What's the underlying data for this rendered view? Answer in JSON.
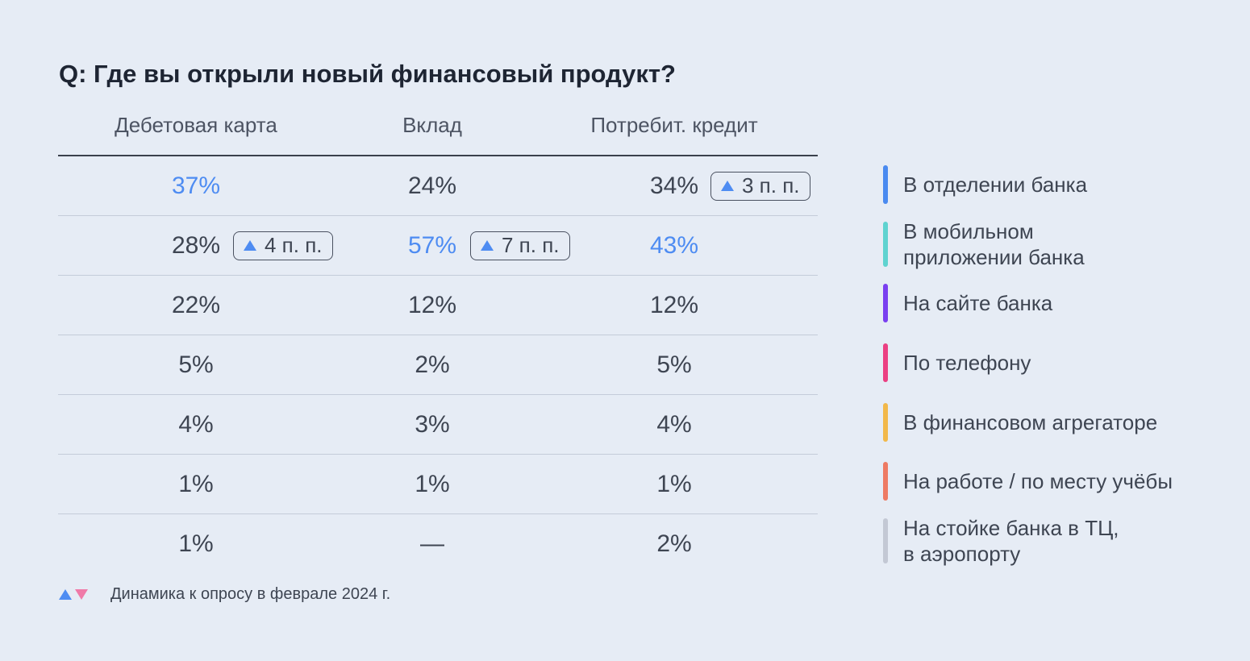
{
  "title": "Q: Где вы открыли новый финансовый продукт?",
  "colors": {
    "highlight": "#4e8cf2",
    "up": "#4e8cf2",
    "down": "#f07aa8"
  },
  "columns": [
    "Дебетовая карта",
    "Вклад",
    "Потребит. кредит"
  ],
  "rows": [
    {
      "category": "В отделении банка",
      "color": "#4a8af0",
      "values": [
        "37%",
        "24%",
        "34%"
      ],
      "highlight": [
        true,
        false,
        false
      ],
      "badges": [
        null,
        null,
        "3 п. п."
      ]
    },
    {
      "category": "В мобильном\nприложении банка",
      "color": "#5fd3d0",
      "values": [
        "28%",
        "57%",
        "43%"
      ],
      "highlight": [
        false,
        true,
        true
      ],
      "badges": [
        "4 п. п.",
        "7 п. п.",
        null
      ]
    },
    {
      "category": "На сайте банка",
      "color": "#7a3ff0",
      "values": [
        "22%",
        "12%",
        "12%"
      ],
      "highlight": [
        false,
        false,
        false
      ],
      "badges": [
        null,
        null,
        null
      ]
    },
    {
      "category": "По телефону",
      "color": "#eb3f82",
      "values": [
        "5%",
        "2%",
        "5%"
      ],
      "highlight": [
        false,
        false,
        false
      ],
      "badges": [
        null,
        null,
        null
      ]
    },
    {
      "category": "В финансовом агрегаторе",
      "color": "#f2b84a",
      "values": [
        "4%",
        "3%",
        "4%"
      ],
      "highlight": [
        false,
        false,
        false
      ],
      "badges": [
        null,
        null,
        null
      ]
    },
    {
      "category": "На работе / по месту учёбы",
      "color": "#ee7a63",
      "values": [
        "1%",
        "1%",
        "1%"
      ],
      "highlight": [
        false,
        false,
        false
      ],
      "badges": [
        null,
        null,
        null
      ]
    },
    {
      "category": "На стойке банка в ТЦ,\nв аэропорту",
      "color": "#c3c8d4",
      "values": [
        "1%",
        "—",
        "2%"
      ],
      "highlight": [
        false,
        false,
        false
      ],
      "badges": [
        null,
        null,
        null
      ]
    }
  ],
  "footnote": "Динамика к опросу в феврале 2024 г.",
  "chart_data": {
    "type": "table",
    "title": "Q: Где вы открыли новый финансовый продукт?",
    "columns": [
      "Дебетовая карта",
      "Вклад",
      "Потребит. кредит"
    ],
    "categories": [
      "В отделении банка",
      "В мобильном приложении банка",
      "На сайте банка",
      "По телефону",
      "В финансовом агрегаторе",
      "На работе / по месту учёбы",
      "На стойке банка в ТЦ, в аэропорту"
    ],
    "series": [
      {
        "name": "Дебетовая карта",
        "values": [
          37,
          28,
          22,
          5,
          4,
          1,
          1
        ]
      },
      {
        "name": "Вклад",
        "values": [
          24,
          57,
          12,
          2,
          3,
          1,
          null
        ]
      },
      {
        "name": "Потребит. кредит",
        "values": [
          34,
          43,
          12,
          5,
          4,
          1,
          2
        ]
      }
    ],
    "changes_pp": [
      {
        "category": "В отделении банка",
        "column": "Потребит. кредит",
        "direction": "up",
        "value": 3
      },
      {
        "category": "В мобильном приложении банка",
        "column": "Дебетовая карта",
        "direction": "up",
        "value": 4
      },
      {
        "category": "В мобильном приложении банка",
        "column": "Вклад",
        "direction": "up",
        "value": 7
      }
    ],
    "legend": "right"
  }
}
